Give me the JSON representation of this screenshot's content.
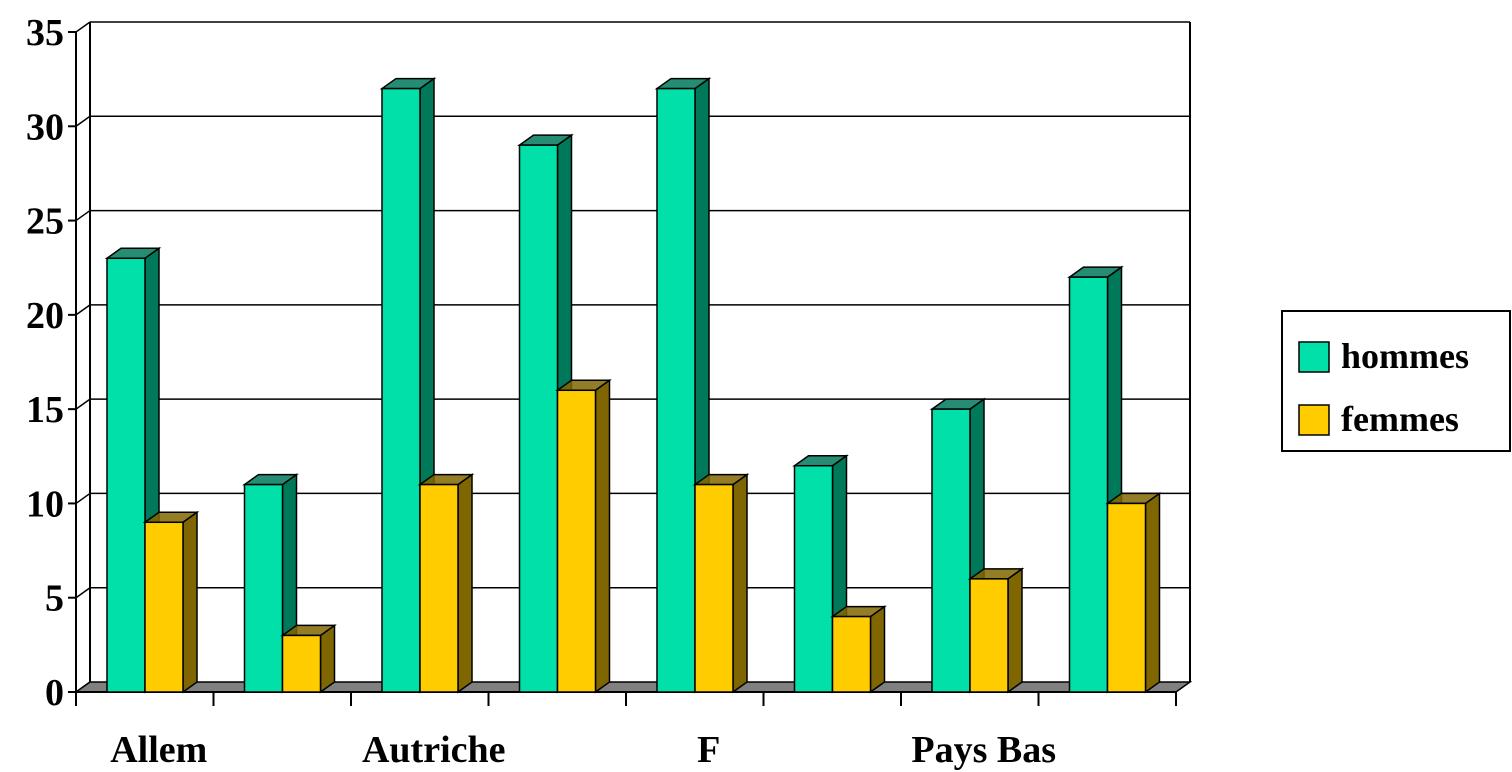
{
  "chart_data": {
    "type": "bar",
    "style": "3d-clustered",
    "categories": [
      "Allem",
      "",
      "Autriche",
      "",
      "F",
      "",
      "Pays Bas",
      ""
    ],
    "series": [
      {
        "name": "hommes",
        "values": [
          23,
          11,
          32,
          29,
          32,
          12,
          15,
          22
        ],
        "color": "#00E0A8",
        "side_color": "#00785A"
      },
      {
        "name": "femmes",
        "values": [
          9,
          3,
          11,
          16,
          11,
          4,
          6,
          10
        ],
        "color": "#FFCC00",
        "side_color": "#806600"
      }
    ],
    "title": "",
    "xlabel": "",
    "ylabel": "",
    "ylim": [
      0,
      35
    ],
    "yticks": [
      "0",
      "5",
      "10",
      "15",
      "20",
      "25",
      "30",
      "35"
    ],
    "grid": true,
    "legend": "right",
    "floor_color": "#808080"
  }
}
